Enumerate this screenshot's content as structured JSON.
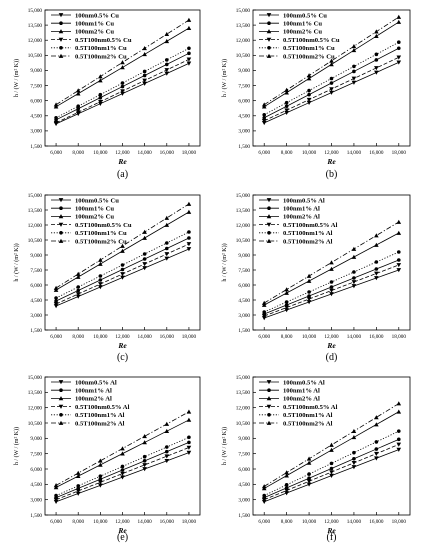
{
  "legend_header": "",
  "chart_data": [
    {
      "type": "line",
      "panel_label": "(a)",
      "xlabel": "Re",
      "ylabel": "h / (W / (m² K))",
      "xlim": [
        5000,
        19000
      ],
      "ylim": [
        1500,
        15000
      ],
      "x_ticks": [
        "6,000",
        "8,000",
        "10,000",
        "12,000",
        "14,000",
        "16,000",
        "18,000"
      ],
      "y_ticks": [
        "1,500",
        "3,000",
        "4,500",
        "6,000",
        "7,500",
        "9,000",
        "10,500",
        "12,000",
        "13,500",
        "15,000"
      ],
      "legend_position": "top-left",
      "x": [
        6000,
        8000,
        10000,
        12000,
        14000,
        16000,
        18000
      ],
      "series": [
        {
          "name": "100nm0.5% Cu",
          "style": "solid",
          "marker": "triangle-down",
          "values": [
            3700,
            4700,
            5700,
            6700,
            7700,
            8700,
            9700
          ]
        },
        {
          "name": "100nm1% Cu",
          "style": "solid",
          "marker": "circle",
          "values": [
            4100,
            5200,
            6300,
            7400,
            8500,
            9600,
            10700
          ]
        },
        {
          "name": "100nm2% Cu",
          "style": "solid",
          "marker": "triangle-up",
          "values": [
            5400,
            6700,
            8000,
            9300,
            10600,
            11900,
            13200
          ]
        },
        {
          "name": "0.5T100nm0.5% Cu",
          "style": "dashed",
          "marker": "triangle-down",
          "values": [
            3800,
            4850,
            5900,
            6950,
            8000,
            9050,
            10100
          ]
        },
        {
          "name": "0.5T100nm1% Cu",
          "style": "dotted",
          "marker": "circle",
          "values": [
            4300,
            5450,
            6600,
            7750,
            8900,
            10050,
            11200
          ]
        },
        {
          "name": "0.5T100nm2% Cu",
          "style": "dashdot",
          "marker": "triangle-up",
          "values": [
            5600,
            7000,
            8400,
            9800,
            11200,
            12600,
            14000
          ]
        }
      ]
    },
    {
      "type": "line",
      "panel_label": "(b)",
      "xlabel": "Re",
      "ylabel": "h / (W / (m² K))",
      "xlim": [
        5000,
        19000
      ],
      "ylim": [
        1500,
        15000
      ],
      "x_ticks": [
        "6,000",
        "8,000",
        "10,000",
        "12,000",
        "14,000",
        "16,000",
        "18,000"
      ],
      "y_ticks": [
        "1,500",
        "3,000",
        "4,500",
        "6,000",
        "7,500",
        "9,000",
        "10,500",
        "12,000",
        "13,500",
        "15,000"
      ],
      "legend_position": "top-left",
      "x": [
        6000,
        8000,
        10000,
        12000,
        14000,
        16000,
        18000
      ],
      "series": [
        {
          "name": "100nm0.5% Cu",
          "style": "solid",
          "marker": "triangle-down",
          "values": [
            3800,
            4800,
            5800,
            6800,
            7800,
            8800,
            9800
          ]
        },
        {
          "name": "100nm1% Cu",
          "style": "solid",
          "marker": "circle",
          "values": [
            4300,
            5450,
            6600,
            7750,
            8900,
            10050,
            11200
          ]
        },
        {
          "name": "100nm2% Cu",
          "style": "solid",
          "marker": "triangle-up",
          "values": [
            5400,
            6800,
            8200,
            9600,
            11000,
            12400,
            13800
          ]
        },
        {
          "name": "0.5T100nm0.5% Cu",
          "style": "dashed",
          "marker": "triangle-down",
          "values": [
            4000,
            5050,
            6100,
            7150,
            8200,
            9250,
            10300
          ]
        },
        {
          "name": "0.5T100nm1% Cu",
          "style": "dotted",
          "marker": "circle",
          "values": [
            4600,
            5800,
            7000,
            8200,
            9400,
            10600,
            11800
          ]
        },
        {
          "name": "0.5T100nm2% Cu",
          "style": "dashdot",
          "marker": "triangle-up",
          "values": [
            5600,
            7050,
            8500,
            9950,
            11400,
            12850,
            14300
          ]
        }
      ]
    },
    {
      "type": "line",
      "panel_label": "(c)",
      "xlabel": "Re",
      "ylabel": "h / (W / (m² K))",
      "xlim": [
        5000,
        19000
      ],
      "ylim": [
        1500,
        15000
      ],
      "x_ticks": [
        "6,000",
        "8,000",
        "10,000",
        "12,000",
        "14,000",
        "16,000",
        "18,000"
      ],
      "y_ticks": [
        "1,500",
        "3,000",
        "4,500",
        "6,000",
        "7,500",
        "9,000",
        "10,500",
        "12,000",
        "13,500",
        "15,000"
      ],
      "legend_position": "top-left",
      "x": [
        6000,
        8000,
        10000,
        12000,
        14000,
        16000,
        18000
      ],
      "series": [
        {
          "name": "100nm0.5% Cu",
          "style": "solid",
          "marker": "triangle-down",
          "values": [
            3900,
            4850,
            5800,
            6750,
            7700,
            8650,
            9600
          ]
        },
        {
          "name": "100nm1% Cu",
          "style": "solid",
          "marker": "circle",
          "values": [
            4400,
            5450,
            6500,
            7550,
            8600,
            9650,
            10700
          ]
        },
        {
          "name": "100nm2% Cu",
          "style": "solid",
          "marker": "triangle-up",
          "values": [
            5500,
            6800,
            8100,
            9400,
            10700,
            12000,
            13300
          ]
        },
        {
          "name": "0.5T100nm0.5% Cu",
          "style": "dashed",
          "marker": "triangle-down",
          "values": [
            4100,
            5100,
            6100,
            7100,
            8100,
            9100,
            10100
          ]
        },
        {
          "name": "0.5T100nm1% Cu",
          "style": "dotted",
          "marker": "circle",
          "values": [
            4700,
            5800,
            6900,
            8000,
            9100,
            10200,
            11300
          ]
        },
        {
          "name": "0.5T100nm2% Cu",
          "style": "dashdot",
          "marker": "triangle-up",
          "values": [
            5700,
            7100,
            8500,
            9900,
            11300,
            12700,
            14100
          ]
        }
      ]
    },
    {
      "type": "line",
      "panel_label": "(d)",
      "xlabel": "Re",
      "ylabel": "h / (W / (m² K))",
      "xlim": [
        5000,
        19000
      ],
      "ylim": [
        1500,
        15000
      ],
      "x_ticks": [
        "6,000",
        "8,000",
        "10,000",
        "12,000",
        "14,000",
        "16,000",
        "18,000"
      ],
      "y_ticks": [
        "1,500",
        "3,000",
        "4,500",
        "6,000",
        "7,500",
        "9,000",
        "10,500",
        "12,000",
        "13,500",
        "15,000"
      ],
      "legend_position": "top-left",
      "x": [
        6000,
        8000,
        10000,
        12000,
        14000,
        16000,
        18000
      ],
      "series": [
        {
          "name": "100nm0.5% Al",
          "style": "solid",
          "marker": "triangle-down",
          "values": [
            2700,
            3500,
            4300,
            5100,
            5900,
            6700,
            7500
          ]
        },
        {
          "name": "100nm1% Al",
          "style": "solid",
          "marker": "circle",
          "values": [
            3100,
            4000,
            4900,
            5800,
            6700,
            7600,
            8500
          ]
        },
        {
          "name": "100nm2% Al",
          "style": "solid",
          "marker": "triangle-up",
          "values": [
            4000,
            5200,
            6400,
            7600,
            8800,
            10000,
            11200
          ]
        },
        {
          "name": "0.5T100nm0.5% Al",
          "style": "dashed",
          "marker": "triangle-down",
          "values": [
            2900,
            3750,
            4600,
            5450,
            6300,
            7150,
            8000
          ]
        },
        {
          "name": "0.5T100nm1% Al",
          "style": "dotted",
          "marker": "circle",
          "values": [
            3300,
            4300,
            5300,
            6300,
            7300,
            8300,
            9300
          ]
        },
        {
          "name": "0.5T100nm2% Al",
          "style": "dashdot",
          "marker": "triangle-up",
          "values": [
            4200,
            5550,
            6900,
            8250,
            9600,
            10950,
            12300
          ]
        }
      ]
    },
    {
      "type": "line",
      "panel_label": "(e)",
      "xlabel": "Re",
      "ylabel": "h / (W / (m² K))",
      "xlim": [
        5000,
        19000
      ],
      "ylim": [
        1500,
        15000
      ],
      "x_ticks": [
        "6,000",
        "8,000",
        "10,000",
        "12,000",
        "14,000",
        "16,000",
        "18,000"
      ],
      "y_ticks": [
        "1,500",
        "3,000",
        "4,500",
        "6,000",
        "7,500",
        "9,000",
        "10,500",
        "12,000",
        "13,500",
        "15,000"
      ],
      "legend_position": "top-left",
      "x": [
        6000,
        8000,
        10000,
        12000,
        14000,
        16000,
        18000
      ],
      "series": [
        {
          "name": "100nm0.5% Al",
          "style": "solid",
          "marker": "triangle-down",
          "values": [
            2800,
            3600,
            4400,
            5200,
            6000,
            6800,
            7600
          ]
        },
        {
          "name": "100nm1% Al",
          "style": "solid",
          "marker": "circle",
          "values": [
            3200,
            4100,
            5000,
            5900,
            6800,
            7700,
            8600
          ]
        },
        {
          "name": "100nm2% Al",
          "style": "solid",
          "marker": "triangle-up",
          "values": [
            4200,
            5300,
            6400,
            7500,
            8600,
            9700,
            10800
          ]
        },
        {
          "name": "0.5T100nm0.5% Al",
          "style": "dashed",
          "marker": "triangle-down",
          "values": [
            3000,
            3850,
            4700,
            5550,
            6400,
            7250,
            8100
          ]
        },
        {
          "name": "0.5T100nm1% Al",
          "style": "dotted",
          "marker": "circle",
          "values": [
            3400,
            4350,
            5300,
            6250,
            7200,
            8150,
            9100
          ]
        },
        {
          "name": "0.5T100nm2% Al",
          "style": "dashdot",
          "marker": "triangle-up",
          "values": [
            4400,
            5600,
            6800,
            8000,
            9200,
            10400,
            11600
          ]
        }
      ]
    },
    {
      "type": "line",
      "panel_label": "(f)",
      "xlabel": "Re",
      "ylabel": "h / (W / (m² K))",
      "xlim": [
        5000,
        19000
      ],
      "ylim": [
        1500,
        15000
      ],
      "x_ticks": [
        "6,000",
        "8,000",
        "10,000",
        "12,000",
        "14,000",
        "16,000",
        "18,000"
      ],
      "y_ticks": [
        "1,500",
        "3,000",
        "4,500",
        "6,000",
        "7,500",
        "9,000",
        "10,500",
        "12,000",
        "13,500",
        "15,000"
      ],
      "legend_position": "top-left",
      "x": [
        6000,
        8000,
        10000,
        12000,
        14000,
        16000,
        18000
      ],
      "series": [
        {
          "name": "100nm0.5% Al",
          "style": "solid",
          "marker": "triangle-down",
          "values": [
            2800,
            3650,
            4500,
            5350,
            6200,
            7050,
            7900
          ]
        },
        {
          "name": "100nm1% Al",
          "style": "solid",
          "marker": "circle",
          "values": [
            3200,
            4150,
            5100,
            6050,
            7000,
            7950,
            8900
          ]
        },
        {
          "name": "100nm2% Al",
          "style": "solid",
          "marker": "triangle-up",
          "values": [
            4100,
            5350,
            6600,
            7850,
            9100,
            10350,
            11600
          ]
        },
        {
          "name": "0.5T100nm0.5% Al",
          "style": "dashed",
          "marker": "triangle-down",
          "values": [
            3000,
            3900,
            4800,
            5700,
            6600,
            7500,
            8400
          ]
        },
        {
          "name": "0.5T100nm1% Al",
          "style": "dotted",
          "marker": "circle",
          "values": [
            3400,
            4450,
            5500,
            6550,
            7600,
            8650,
            9700
          ]
        },
        {
          "name": "0.5T100nm2% Al",
          "style": "dashdot",
          "marker": "triangle-up",
          "values": [
            4300,
            5650,
            7000,
            8350,
            9700,
            11050,
            12400
          ]
        }
      ]
    }
  ]
}
